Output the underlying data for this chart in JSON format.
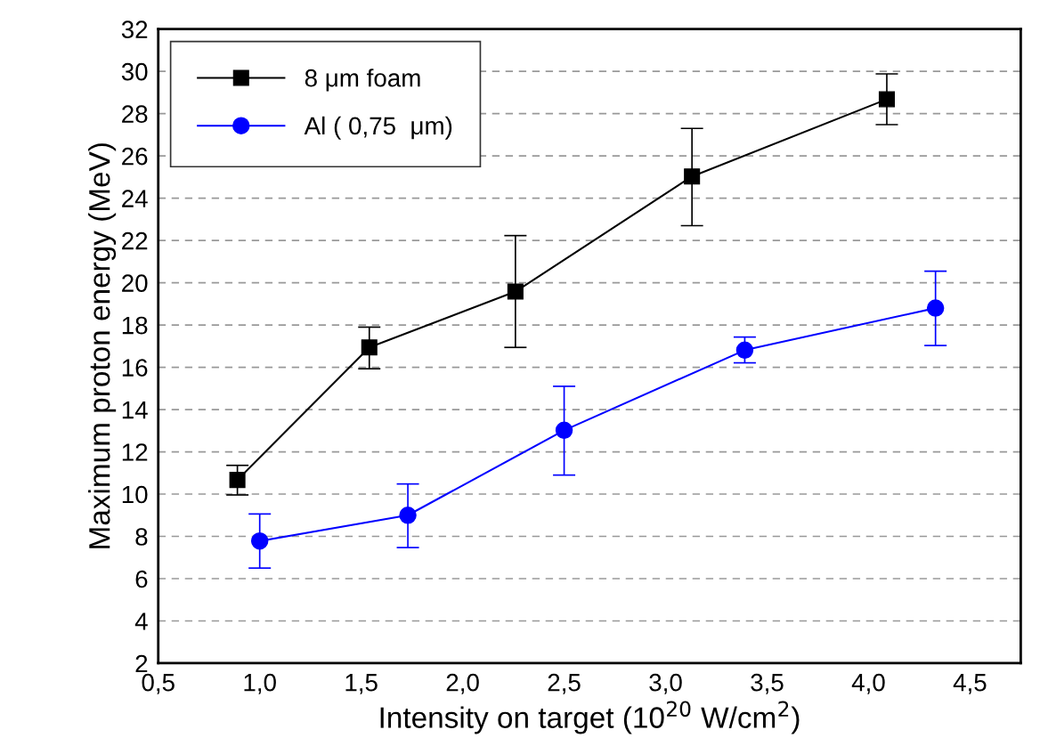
{
  "chart_data": {
    "type": "line",
    "xlabel": "Intensity on target (10$^{20}$ W/cm$^{2}$)",
    "ylabel": "Maximum proton energy (MeV)",
    "xlim": [
      0.5,
      4.75
    ],
    "xticks": [
      {
        "value": 0.5,
        "label": "0,5"
      },
      {
        "value": 1.0,
        "label": "1,0"
      },
      {
        "value": 1.5,
        "label": "1,5"
      },
      {
        "value": 2.0,
        "label": "2,0"
      },
      {
        "value": 2.5,
        "label": "2,5"
      },
      {
        "value": 3.0,
        "label": "3,0"
      },
      {
        "value": 3.5,
        "label": "3,5"
      },
      {
        "value": 4.0,
        "label": "4,0"
      },
      {
        "value": 4.5,
        "label": "4,5"
      }
    ],
    "ylim": [
      2,
      32
    ],
    "yticks": [
      2,
      4,
      6,
      8,
      10,
      12,
      14,
      16,
      18,
      20,
      22,
      24,
      26,
      28,
      30,
      32
    ],
    "grid": "y",
    "legend": "top left",
    "line_style": "solid",
    "series": [
      {
        "name": "8 μm foam",
        "color": "#000000",
        "marker": "square",
        "x": [
          0.89,
          1.54,
          2.26,
          3.13,
          4.09
        ],
        "values": [
          10.67,
          16.94,
          19.58,
          25.03,
          28.68
        ],
        "errors": [
          [
            9.96,
            11.36
          ],
          [
            15.93,
            17.9
          ],
          [
            16.94,
            22.23
          ],
          [
            22.7,
            27.3
          ],
          [
            27.48,
            29.88
          ]
        ]
      },
      {
        "name": "Al ( 0,75  μm)",
        "color": "#0000ff",
        "marker": "circle",
        "x": [
          1.0,
          1.73,
          2.5,
          3.39,
          4.33
        ],
        "values": [
          7.78,
          9.0,
          13.02,
          16.81,
          18.8
        ],
        "errors": [
          [
            6.5,
            9.06
          ],
          [
            7.47,
            10.48
          ],
          [
            10.9,
            15.1
          ],
          [
            16.21,
            17.43
          ],
          [
            17.03,
            20.55
          ]
        ]
      }
    ]
  }
}
